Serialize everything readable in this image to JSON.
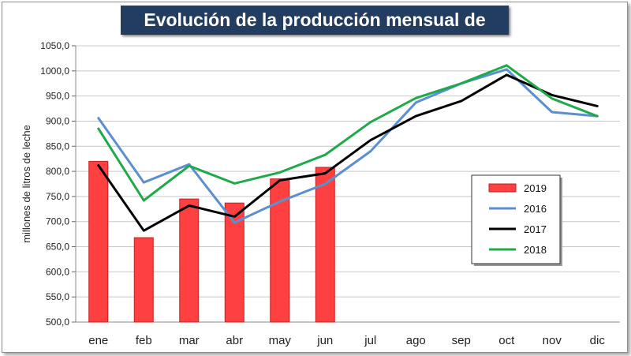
{
  "chart_data": {
    "type": "bar+line",
    "title": "Evolución de la producción mensual de leche",
    "ylabel": "millones de litros de leche",
    "xlabel": "",
    "ylim": [
      500,
      1050
    ],
    "yticks": [
      "500,0",
      "550,0",
      "600,0",
      "650,0",
      "700,0",
      "750,0",
      "800,0",
      "850,0",
      "900,0",
      "950,0",
      "1000,0",
      "1050,0"
    ],
    "categories": [
      "ene",
      "feb",
      "mar",
      "abr",
      "may",
      "jun",
      "jul",
      "ago",
      "sep",
      "oct",
      "nov",
      "dic"
    ],
    "grid": "horizontal",
    "legend_position": "right",
    "bars": {
      "name": "2019",
      "color": "#ff4040",
      "values": [
        820,
        668,
        745,
        737,
        785,
        808
      ]
    },
    "series": [
      {
        "name": "2016",
        "color": "#5b8fd0",
        "values": [
          906,
          778,
          814,
          698,
          740,
          775,
          840,
          937,
          975,
          1003,
          918,
          910
        ]
      },
      {
        "name": "2017",
        "color": "#000000",
        "values": [
          812,
          682,
          732,
          710,
          782,
          796,
          862,
          910,
          940,
          992,
          952,
          930
        ]
      },
      {
        "name": "2018",
        "color": "#1faa4a",
        "values": [
          885,
          742,
          811,
          776,
          798,
          833,
          898,
          946,
          975,
          1011,
          945,
          910
        ]
      }
    ]
  }
}
